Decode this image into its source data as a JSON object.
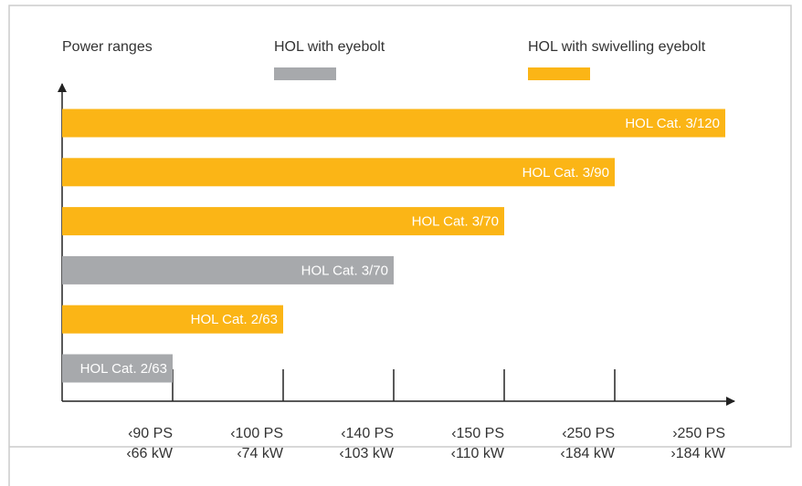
{
  "chart_data": {
    "type": "bar",
    "orientation": "horizontal",
    "y_axis_label": "Power ranges",
    "series": [
      {
        "name": "HOL with eyebolt",
        "color": "#a7a9ac"
      },
      {
        "name": "HOL with swivelling eyebolt",
        "color": "#fbb516"
      }
    ],
    "bars": [
      {
        "label": "HOL Cat. 2/63",
        "series": 0,
        "value": 1
      },
      {
        "label": "HOL Cat. 2/63",
        "series": 1,
        "value": 2
      },
      {
        "label": "HOL Cat. 3/70",
        "series": 0,
        "value": 3
      },
      {
        "label": "HOL Cat. 3/70",
        "series": 1,
        "value": 4
      },
      {
        "label": "HOL Cat. 3/90",
        "series": 1,
        "value": 5
      },
      {
        "label": "HOL Cat. 3/120",
        "series": 1,
        "value": 6
      }
    ],
    "categories": [
      [
        "‹90 PS",
        "‹66 kW"
      ],
      [
        "‹100 PS",
        "‹74 kW"
      ],
      [
        "‹140 PS",
        "‹103 kW"
      ],
      [
        "‹150 PS",
        "‹110 kW"
      ],
      [
        "‹250 PS",
        "‹184 kW"
      ],
      [
        "›250 PS",
        "›184 kW"
      ]
    ],
    "xlim": [
      0,
      6
    ],
    "xticks": [
      1,
      2,
      3,
      4,
      5
    ]
  }
}
